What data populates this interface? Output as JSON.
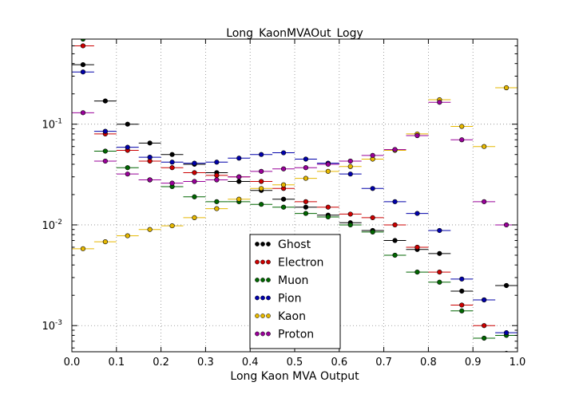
{
  "chart_data": {
    "type": "scatter",
    "title": "Long_KaonMVAOut_Logy",
    "xlabel": "Long Kaon MVA Output",
    "ylabel": "",
    "xlim": [
      0.0,
      1.0
    ],
    "ylim": [
      0.00055,
      0.7
    ],
    "yscale": "log",
    "grid": true,
    "legend_position": "bottom-center",
    "x_ticks": [
      "0.0",
      "0.1",
      "0.2",
      "0.3",
      "0.4",
      "0.5",
      "0.6",
      "0.7",
      "0.8",
      "0.9",
      "1.0"
    ],
    "y_ticks": [
      {
        "base": "10",
        "exp": "-3",
        "value": 0.001
      },
      {
        "base": "10",
        "exp": "-2",
        "value": 0.01
      },
      {
        "base": "10",
        "exp": "-1",
        "value": 0.1
      }
    ],
    "bin_width": 0.05,
    "x": [
      0.025,
      0.075,
      0.125,
      0.175,
      0.225,
      0.275,
      0.325,
      0.375,
      0.425,
      0.475,
      0.525,
      0.575,
      0.625,
      0.675,
      0.725,
      0.775,
      0.825,
      0.875,
      0.925,
      0.975
    ],
    "series": [
      {
        "name": "Ghost",
        "color": "#000000",
        "values": [
          0.39,
          0.17,
          0.1,
          0.065,
          0.05,
          0.04,
          0.033,
          0.027,
          0.022,
          0.018,
          0.015,
          0.0125,
          0.0105,
          0.0088,
          0.007,
          0.0057,
          0.0052,
          0.0022,
          0.0018,
          0.0025
        ]
      },
      {
        "name": "Electron",
        "color": "#cc0000",
        "values": [
          0.6,
          0.08,
          0.055,
          0.043,
          0.037,
          0.033,
          0.031,
          0.03,
          0.027,
          0.023,
          0.017,
          0.015,
          0.0128,
          0.0118,
          0.01,
          0.006,
          0.0034,
          0.0016,
          0.001,
          0.00053
        ]
      },
      {
        "name": "Muon",
        "color": "#006600",
        "values": [
          0.7,
          0.054,
          0.037,
          0.028,
          0.024,
          0.019,
          0.017,
          0.017,
          0.016,
          0.015,
          0.013,
          0.012,
          0.01,
          0.0085,
          0.005,
          0.0034,
          0.0027,
          0.0014,
          0.00075,
          0.0008
        ]
      },
      {
        "name": "Pion",
        "color": "#0000aa",
        "values": [
          0.33,
          0.085,
          0.059,
          0.047,
          0.042,
          0.041,
          0.042,
          0.046,
          0.05,
          0.052,
          0.045,
          0.041,
          0.032,
          0.023,
          0.017,
          0.013,
          0.0088,
          0.0029,
          0.0018,
          0.00085
        ]
      },
      {
        "name": "Kaon",
        "color": "#e6b800",
        "values": [
          0.0058,
          0.0068,
          0.0078,
          0.009,
          0.0098,
          0.0118,
          0.0145,
          0.018,
          0.023,
          0.025,
          0.029,
          0.034,
          0.038,
          0.045,
          0.055,
          0.08,
          0.175,
          0.095,
          0.06,
          0.23
        ]
      },
      {
        "name": "Proton",
        "color": "#990099",
        "values": [
          0.13,
          0.043,
          0.032,
          0.028,
          0.026,
          0.027,
          0.028,
          0.03,
          0.034,
          0.036,
          0.037,
          0.04,
          0.043,
          0.049,
          0.056,
          0.077,
          0.165,
          0.07,
          0.017,
          0.01
        ]
      }
    ]
  }
}
